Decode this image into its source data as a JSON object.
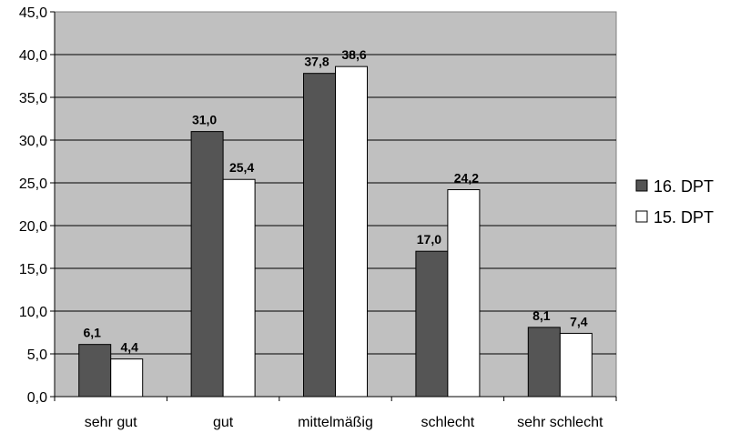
{
  "chart_data": {
    "type": "bar",
    "categories": [
      "sehr gut",
      "gut",
      "mittelmäßig",
      "schlecht",
      "sehr schlecht"
    ],
    "series": [
      {
        "name": "16. DPT",
        "values": [
          6.1,
          31.0,
          37.8,
          17.0,
          8.1
        ],
        "labels": [
          "6,1",
          "31,0",
          "37,8",
          "17,0",
          "8,1"
        ],
        "color": "#555555"
      },
      {
        "name": "15. DPT",
        "values": [
          4.4,
          25.4,
          38.6,
          24.2,
          7.4
        ],
        "labels": [
          "4,4",
          "25,4",
          "38,6",
          "24,2",
          "7,4"
        ],
        "color": "#ffffff"
      }
    ],
    "ylim": [
      0,
      45
    ],
    "yticks": [
      0,
      5,
      10,
      15,
      20,
      25,
      30,
      35,
      40,
      45
    ],
    "ytick_labels": [
      "0,0",
      "5,0",
      "10,0",
      "15,0",
      "20,0",
      "25,0",
      "30,0",
      "35,0",
      "40,0",
      "45,0"
    ],
    "grid": true,
    "legend_position": "right",
    "plot_background": "#c0c0c0",
    "title": "",
    "xlabel": "",
    "ylabel": ""
  }
}
